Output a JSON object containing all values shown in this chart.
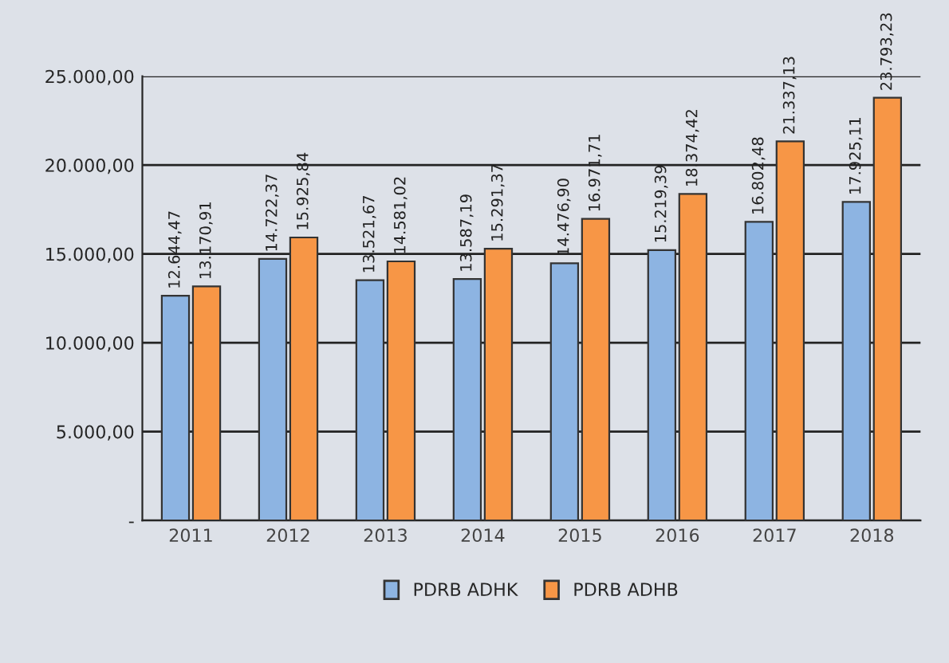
{
  "chart_data": {
    "type": "bar",
    "categories": [
      "2011",
      "2012",
      "2013",
      "2014",
      "2015",
      "2016",
      "2017",
      "2018"
    ],
    "series": [
      {
        "name": "PDRB ADHK",
        "color": "#8db4e2",
        "values": [
          12644.47,
          14722.37,
          13521.67,
          13587.19,
          14476.9,
          15219.39,
          16802.48,
          17925.11
        ],
        "value_labels": [
          "12.644,47",
          "14.722,37",
          "13.521,67",
          "13.587,19",
          "14.476,90",
          "15.219,39",
          "16.802,48",
          "17.925,11"
        ]
      },
      {
        "name": "PDRB ADHB",
        "color": "#f79646",
        "values": [
          13170.91,
          15925.84,
          14581.02,
          15291.37,
          16971.71,
          18374.42,
          21337.13,
          23793.23
        ],
        "value_labels": [
          "13.170,91",
          "15.925,84",
          "14.581,02",
          "15.291,37",
          "16.971,71",
          "18.374,42",
          "21.337,13",
          "23.793,23"
        ]
      }
    ],
    "ylim": [
      0,
      25000
    ],
    "yticks": [
      {
        "value": 0,
        "label": "-"
      },
      {
        "value": 5000,
        "label": "5.000,00"
      },
      {
        "value": 10000,
        "label": "10.000,00"
      },
      {
        "value": 15000,
        "label": "15.000,00"
      },
      {
        "value": 20000,
        "label": "20.000,00"
      },
      {
        "value": 25000,
        "label": "25.000,00"
      }
    ],
    "grid": "y",
    "legend": "bottom"
  }
}
